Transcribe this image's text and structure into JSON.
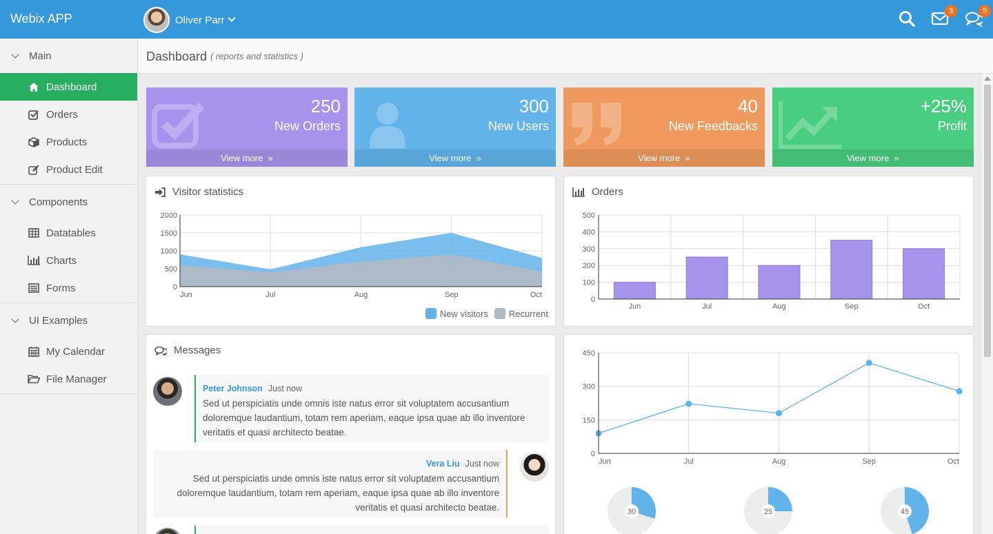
{
  "app": {
    "title": "Webix APP"
  },
  "user": {
    "name": "Oliver Parr"
  },
  "topbar": {
    "mail_count": "3",
    "chat_count": "5"
  },
  "sidebar": {
    "groups": [
      {
        "label": "Main",
        "items": [
          {
            "label": "Dashboard",
            "icon": "home-icon",
            "active": true
          },
          {
            "label": "Orders",
            "icon": "check-square-icon"
          },
          {
            "label": "Products",
            "icon": "cube-icon"
          },
          {
            "label": "Product Edit",
            "icon": "edit-icon"
          }
        ]
      },
      {
        "label": "Components",
        "items": [
          {
            "label": "Datatables",
            "icon": "table-icon"
          },
          {
            "label": "Charts",
            "icon": "bar-chart-icon"
          },
          {
            "label": "Forms",
            "icon": "list-icon"
          }
        ]
      },
      {
        "label": "UI Examples",
        "items": [
          {
            "label": "My Calendar",
            "icon": "calendar-icon"
          },
          {
            "label": "File Manager",
            "icon": "folder-open-icon"
          }
        ]
      }
    ]
  },
  "header": {
    "title": "Dashboard",
    "subtitle": "( reports and statistics )"
  },
  "tiles": [
    {
      "value": "250",
      "label": "New Orders",
      "more": "View more",
      "color": "#a693eb"
    },
    {
      "value": "300",
      "label": "New Users",
      "more": "View more",
      "color": "#62b3ea"
    },
    {
      "value": "40",
      "label": "New Feedbacks",
      "more": "View more",
      "color": "#f0995e"
    },
    {
      "value": "+25%",
      "label": "Profit",
      "more": "View more",
      "color": "#49cd81"
    }
  ],
  "panels": {
    "visitors": {
      "title": "Visitor statistics"
    },
    "orders": {
      "title": "Orders"
    },
    "messages": {
      "title": "Messages"
    }
  },
  "chart_data": [
    {
      "type": "area",
      "title": "Visitor statistics",
      "categories": [
        "Jun",
        "Jul",
        "Aug",
        "Sep",
        "Oct"
      ],
      "ylim": [
        0,
        2000
      ],
      "yticks": [
        0,
        500,
        1000,
        1500,
        2000
      ],
      "grid": true,
      "legend": "bottom-right",
      "series": [
        {
          "name": "New visitors",
          "values": [
            900,
            480,
            1100,
            1500,
            800
          ],
          "color": "#62b3ea"
        },
        {
          "name": "Recurrent",
          "values": [
            600,
            400,
            700,
            900,
            420
          ],
          "color": "#b0b8c3"
        }
      ]
    },
    {
      "type": "bar",
      "title": "Orders",
      "categories": [
        "Jun",
        "Jul",
        "Aug",
        "Sep",
        "Oct"
      ],
      "values": [
        100,
        250,
        200,
        350,
        300
      ],
      "ylim": [
        0,
        500
      ],
      "yticks": [
        0,
        100,
        200,
        300,
        400,
        500
      ],
      "grid": true,
      "color": "#a693eb"
    },
    {
      "type": "line",
      "categories": [
        "Jun",
        "Jul",
        "Aug",
        "Sep",
        "Oct"
      ],
      "values": [
        90,
        222,
        180,
        405,
        278
      ],
      "ylim": [
        0,
        450
      ],
      "yticks": [
        0,
        150,
        300,
        450
      ],
      "grid": true,
      "color": "#5cb3ea"
    },
    {
      "type": "pie",
      "values": [
        30,
        25,
        45
      ],
      "labels": [
        "30",
        "25",
        "45"
      ],
      "color": "#62b3ea",
      "rest_color": "#ececec"
    }
  ],
  "messages": [
    {
      "name": "Peter Johnson",
      "time": "Just now",
      "text": "Sed ut perspiciatis unde omnis iste natus error sit voluptatem accusantium doloremque laudantium, totam rem aperiam, eaque ipsa quae ab illo inventore veritatis et quasi architecto beatae.",
      "accent": "#27ae60"
    },
    {
      "name": "Vera Liu",
      "time": "Just now",
      "text": "Sed ut perspiciatis unde omnis iste natus error sit voluptatem accusantium doloremque laudantium, totam rem aperiam, eaque ipsa quae ab illo inventore veritatis et quasi architecto beatae.",
      "accent": "#f0995e"
    }
  ]
}
